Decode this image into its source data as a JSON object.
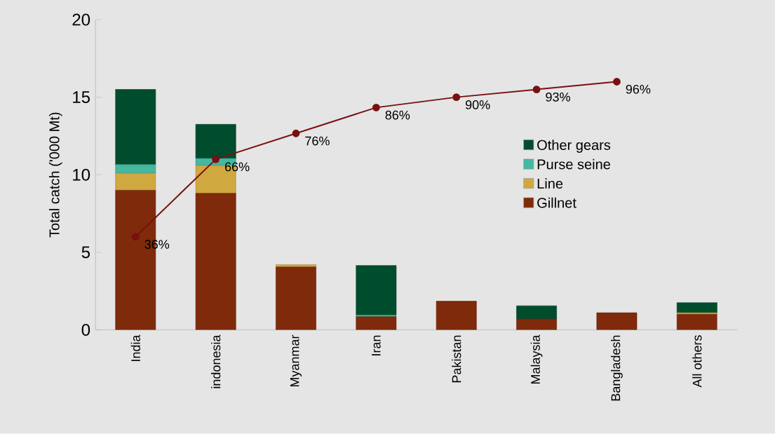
{
  "chart_data": {
    "type": "bar",
    "stacked": true,
    "ylabel": "Total catch ('000 Mt)",
    "categories": [
      "India",
      "indonesia",
      "Myanmar",
      "Iran",
      "Pakistan",
      "Malaysia",
      "Bangladesh",
      "All others"
    ],
    "series": [
      {
        "name": "Gillnet",
        "color": "#7f2a0a",
        "values": [
          9.0,
          8.8,
          4.05,
          0.85,
          1.85,
          0.7,
          1.1,
          1.0
        ]
      },
      {
        "name": "Line",
        "color": "#cfa840",
        "values": [
          1.1,
          1.8,
          0.15,
          null,
          null,
          null,
          null,
          0.1
        ]
      },
      {
        "name": "Purse seine",
        "color": "#44b8a0",
        "values": [
          0.55,
          0.45,
          null,
          0.1,
          null,
          null,
          null,
          null
        ]
      },
      {
        "name": "Other gears",
        "color": "#004d2e",
        "values": [
          4.85,
          2.2,
          null,
          3.2,
          null,
          0.85,
          null,
          0.65
        ]
      },
      {
        "type": "line",
        "axis": "y2",
        "color": "#7a1010",
        "marker": "circle",
        "values": [
          36,
          66,
          76,
          86,
          90,
          93,
          96,
          null
        ],
        "value_labels": [
          "36%",
          "66%",
          "76%",
          "86%",
          "90%",
          "93%",
          "96%",
          null
        ]
      }
    ],
    "ylim": [
      0,
      20
    ],
    "yticks": [
      0,
      5,
      10,
      15,
      20
    ],
    "y2lim": [
      0,
      120
    ],
    "legend": "right",
    "grid": false
  }
}
